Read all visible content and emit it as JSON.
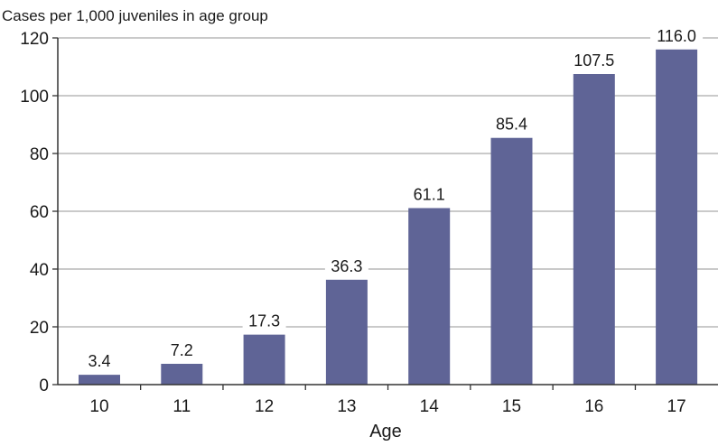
{
  "chart_data": {
    "type": "bar",
    "title": "",
    "ylabel": "Cases per 1,000 juveniles in age group",
    "xlabel": "Age",
    "categories": [
      "10",
      "11",
      "12",
      "13",
      "14",
      "15",
      "16",
      "17"
    ],
    "values": [
      3.4,
      7.2,
      17.3,
      36.3,
      61.1,
      85.4,
      107.5,
      116.0
    ],
    "value_labels": [
      "3.4",
      "7.2",
      "17.3",
      "36.3",
      "61.1",
      "85.4",
      "107.5",
      "116.0"
    ],
    "ylim": [
      0,
      120
    ],
    "yticks": [
      "0",
      "20",
      "40",
      "60",
      "80",
      "100",
      "120"
    ],
    "grid": true,
    "bar_color": "#5f6496",
    "grid_color": "#aaaaaa"
  }
}
